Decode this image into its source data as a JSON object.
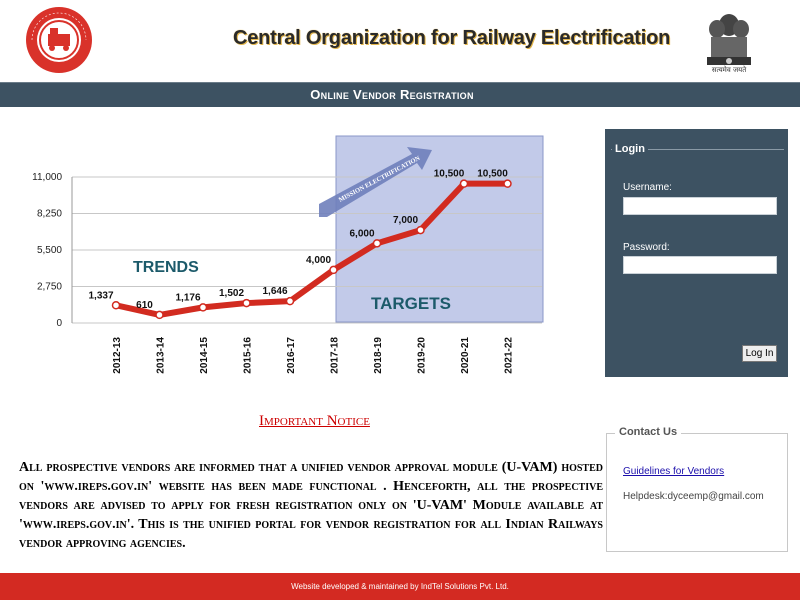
{
  "header": {
    "logo_text": "INDIAN RAILWAYS",
    "title": "Central Organization for Railway Electrification",
    "emblem_motto": "सत्यमेव जयते"
  },
  "title_bar": {
    "label": "Online Vendor Registration"
  },
  "chart_data": {
    "type": "line",
    "categories": [
      "2012-13",
      "2013-14",
      "2014-15",
      "2015-16",
      "2016-17",
      "2017-18",
      "2018-19",
      "2019-20",
      "2020-21",
      "2021-22"
    ],
    "values": [
      1337,
      610,
      1176,
      1502,
      1646,
      4000,
      6000,
      7000,
      10500,
      10500
    ],
    "data_labels": [
      "1,337",
      "610",
      "1,176",
      "1,502",
      "1,646",
      "4,000",
      "6,000",
      "7,000",
      "10,500",
      "10,500"
    ],
    "y_ticks": [
      "0",
      "2,750",
      "5,500",
      "8,250",
      "11,000"
    ],
    "ylim": [
      0,
      11000
    ],
    "annotations": {
      "trends": "TRENDS",
      "targets": "TARGETS",
      "arrow": "MISSION ELECTRIFICATION"
    },
    "grid": true
  },
  "notice": {
    "title": "Important Notice",
    "text": "All prospective vendors are informed that a unified vendor approval module (U-VAM) hosted on 'www.ireps.gov.in' website has been made functional . Henceforth, all the prospective vendors are advised to apply for fresh registration only on 'U-VAM' Module available at 'www.ireps.gov.in'. This is the unified portal for vendor registration for all Indian Railways vendor approving agencies."
  },
  "login": {
    "legend": "Login",
    "username_label": "Username:",
    "username_value": "",
    "password_label": "Password:",
    "password_value": "",
    "button_label": "Log In"
  },
  "contact": {
    "legend": "Contact Us",
    "guidelines_link": "Guidelines for Vendors",
    "helpdesk": "Helpdesk:dyceemp@gmail.com"
  },
  "footer": {
    "text": "Website developed & maintained by IndTel Solutions Pvt. Ltd."
  }
}
